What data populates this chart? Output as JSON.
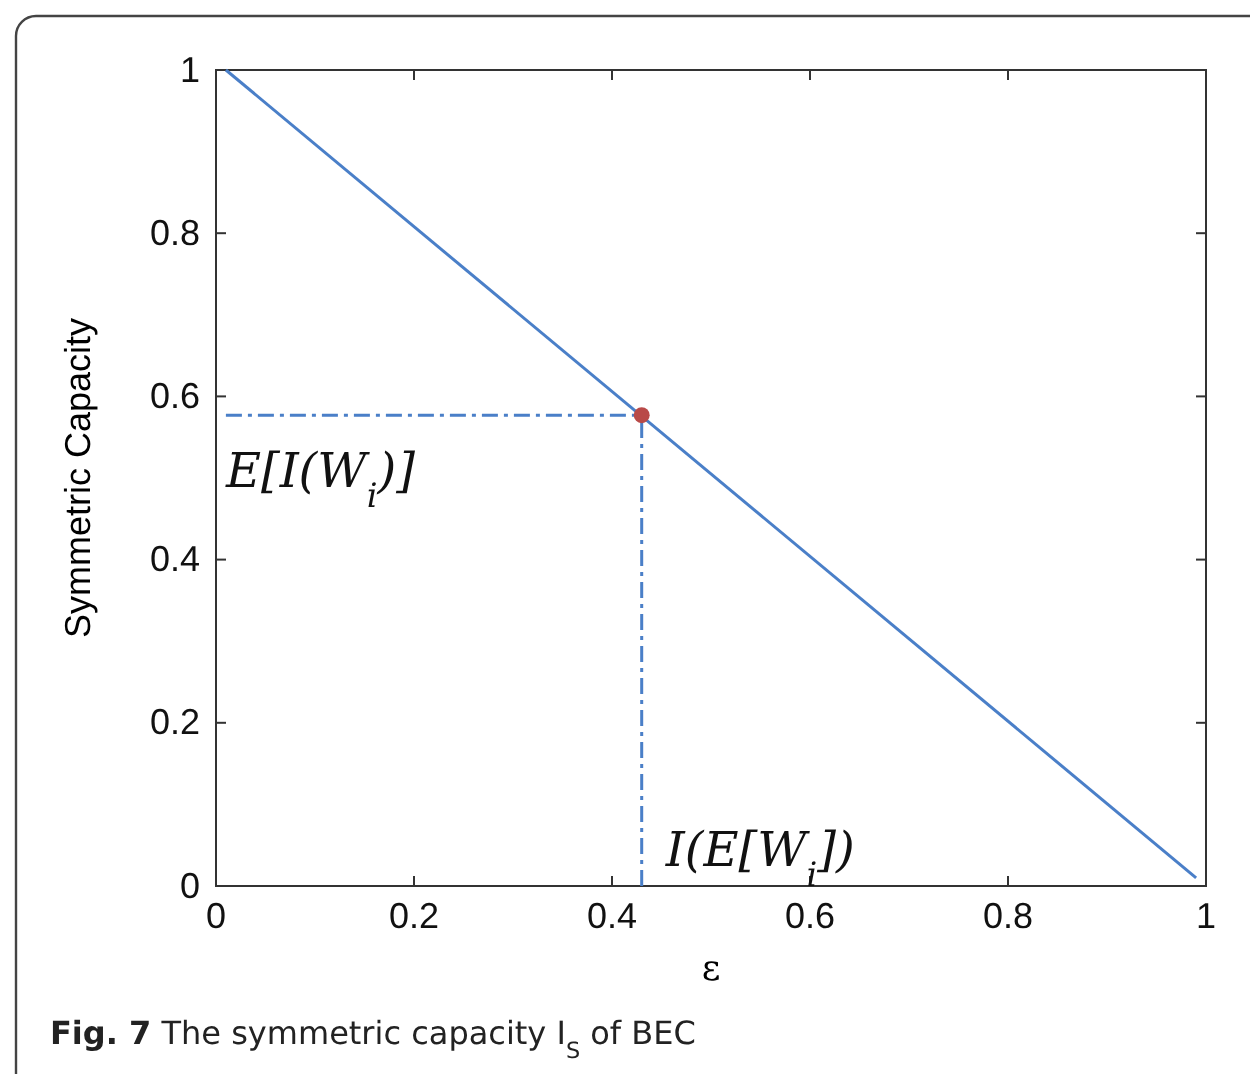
{
  "chart_data": {
    "type": "line",
    "xlabel": "ε",
    "ylabel": "Symmetric Capacity",
    "xlim": [
      0,
      1
    ],
    "ylim": [
      0,
      1
    ],
    "xticks": [
      0,
      0.2,
      0.4,
      0.6,
      0.8,
      1
    ],
    "yticks": [
      0,
      0.2,
      0.4,
      0.6,
      0.8,
      1
    ],
    "grid": false,
    "series": [
      {
        "color": "#4a7fc8",
        "x": [
          0.01,
          0.99
        ],
        "values": [
          1,
          0.01
        ],
        "line_style": "solid"
      },
      {
        "color": "#4a7fc8",
        "x": [
          0.01,
          0.43
        ],
        "values": [
          0.577,
          0.577
        ],
        "line_style": "dashed"
      },
      {
        "color": "#4a7fc8",
        "x": [
          0.43,
          0.43
        ],
        "values": [
          0,
          0.577
        ],
        "line_style": "dashed"
      },
      {
        "type": "scatter",
        "color": "#b94a48",
        "x": [
          0.43
        ],
        "values": [
          0.577
        ],
        "marker": "circle"
      }
    ],
    "annotations": [
      {
        "text": "E[I(W$_{i}$)]",
        "x": 0.01,
        "y": 0.577
      },
      {
        "text": "I(E[W$_{i}$])",
        "x": 0.43,
        "y": 0
      },
      "Fig. 7 The symmetric capacity I$_{S}$ of BEC"
    ]
  }
}
